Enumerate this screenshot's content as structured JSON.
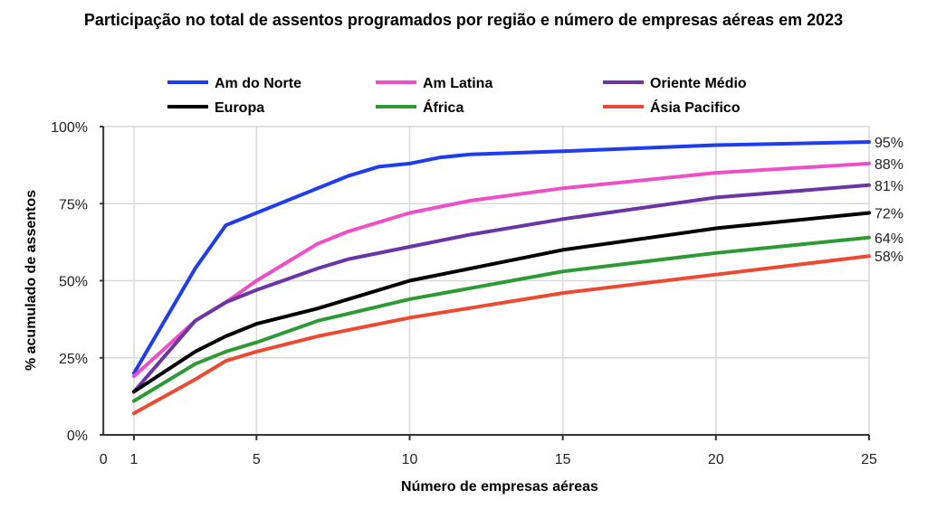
{
  "chart_data": {
    "type": "line",
    "title": "Participação no total de assentos programados por região e número de empresas aéreas em 2023",
    "xlabel": "Número de empresas aéreas",
    "ylabel": "% acumulado de assentos",
    "xlim": [
      0,
      25
    ],
    "ylim": [
      0,
      100
    ],
    "x_ticks": [
      "0",
      "1",
      "5",
      "10",
      "15",
      "20",
      "25"
    ],
    "y_ticks": [
      "0%",
      "25%",
      "50%",
      "75%",
      "100%"
    ],
    "grid": true,
    "legend_placement": "top",
    "series": [
      {
        "name": "Am do Norte",
        "color": "#1f3cf0",
        "end_label": "95%",
        "points": [
          [
            1,
            20
          ],
          [
            3,
            54
          ],
          [
            4,
            68
          ],
          [
            5,
            72
          ],
          [
            7,
            80
          ],
          [
            8,
            84
          ],
          [
            9,
            87
          ],
          [
            10,
            88
          ],
          [
            11,
            90
          ],
          [
            12,
            91
          ],
          [
            15,
            92
          ],
          [
            20,
            94
          ],
          [
            25,
            95
          ]
        ]
      },
      {
        "name": "Am Latina",
        "color": "#ee4fc8",
        "end_label": "88%",
        "points": [
          [
            1,
            19
          ],
          [
            3,
            37
          ],
          [
            4,
            43
          ],
          [
            5,
            50
          ],
          [
            7,
            62
          ],
          [
            8,
            66
          ],
          [
            10,
            72
          ],
          [
            12,
            76
          ],
          [
            15,
            80
          ],
          [
            20,
            85
          ],
          [
            25,
            88
          ]
        ]
      },
      {
        "name": "Oriente Médio",
        "color": "#6a35a5",
        "end_label": "81%",
        "points": [
          [
            1,
            14
          ],
          [
            3,
            37
          ],
          [
            4,
            43
          ],
          [
            5,
            47
          ],
          [
            7,
            54
          ],
          [
            8,
            57
          ],
          [
            10,
            61
          ],
          [
            12,
            65
          ],
          [
            15,
            70
          ],
          [
            20,
            77
          ],
          [
            25,
            81
          ]
        ]
      },
      {
        "name": "Europa",
        "color": "#000000",
        "end_label": "72%",
        "points": [
          [
            1,
            14
          ],
          [
            3,
            27
          ],
          [
            4,
            32
          ],
          [
            5,
            36
          ],
          [
            7,
            41
          ],
          [
            10,
            50
          ],
          [
            13,
            56
          ],
          [
            15,
            60
          ],
          [
            20,
            67
          ],
          [
            25,
            72
          ]
        ]
      },
      {
        "name": "África",
        "color": "#2e9a36",
        "end_label": "64%",
        "points": [
          [
            1,
            11
          ],
          [
            3,
            23
          ],
          [
            4,
            27
          ],
          [
            5,
            30
          ],
          [
            7,
            37
          ],
          [
            10,
            44
          ],
          [
            15,
            53
          ],
          [
            20,
            59
          ],
          [
            25,
            64
          ]
        ]
      },
      {
        "name": "Ásia Pacifico",
        "color": "#ee4a32",
        "end_label": "58%",
        "points": [
          [
            1,
            7
          ],
          [
            3,
            18
          ],
          [
            4,
            24
          ],
          [
            5,
            27
          ],
          [
            7,
            32
          ],
          [
            10,
            38
          ],
          [
            15,
            46
          ],
          [
            20,
            52
          ],
          [
            25,
            58
          ]
        ]
      }
    ]
  }
}
